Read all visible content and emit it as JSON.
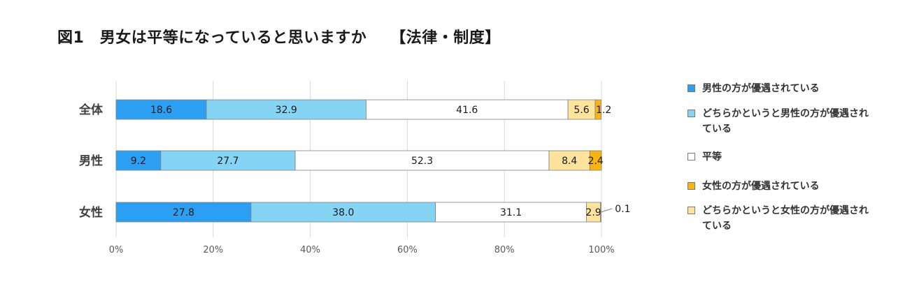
{
  "title": "図1　男女は平等になっていると思いますか　　【法律・制度】",
  "chart_data": {
    "type": "bar",
    "orientation": "horizontal",
    "stacked": true,
    "categories": [
      "全体",
      "男性",
      "女性"
    ],
    "series": [
      {
        "name": "男性の方が優遇されている",
        "values": [
          18.6,
          9.2,
          27.8
        ],
        "color": "#2d9ff2"
      },
      {
        "name": "どちらかというと男性の方が優遇されている",
        "values": [
          32.9,
          27.7,
          38.0
        ],
        "color": "#86d4f4"
      },
      {
        "name": "平等",
        "values": [
          41.6,
          52.3,
          31.1
        ],
        "color": "#ffffff"
      },
      {
        "name": "どちらかというと女性の方が優遇されている",
        "values": [
          5.6,
          8.4,
          2.9
        ],
        "color": "#fde39b"
      },
      {
        "name": "女性の方が優遇されている",
        "values": [
          1.2,
          2.4,
          0.1
        ],
        "color": "#f7b413"
      }
    ],
    "data_labels": [
      [
        "18.6",
        "9.2",
        "27.8"
      ],
      [
        "32.9",
        "27.7",
        "38.0"
      ],
      [
        "41.6",
        "52.3",
        "31.1"
      ],
      [
        "5.6",
        "8.4",
        "2.9"
      ],
      [
        "1.2",
        "2.4",
        "0.1"
      ]
    ],
    "xlim": [
      0,
      100
    ],
    "x_ticks": [
      "0%",
      "20%",
      "40%",
      "60%",
      "80%",
      "100%"
    ],
    "grid": true,
    "legend_position": "right"
  },
  "legend": [
    {
      "label": "男性の方が優遇されている",
      "color": "#2d9ff2"
    },
    {
      "label": "どちらかというと男性の方が優遇されている",
      "color": "#86d4f4"
    },
    {
      "label": "平等",
      "color": "#ffffff"
    },
    {
      "label": "女性の方が優遇されている",
      "color": "#f7b413"
    },
    {
      "label": "どちらかというと女性の方が優遇されている",
      "color": "#fde39b"
    }
  ]
}
